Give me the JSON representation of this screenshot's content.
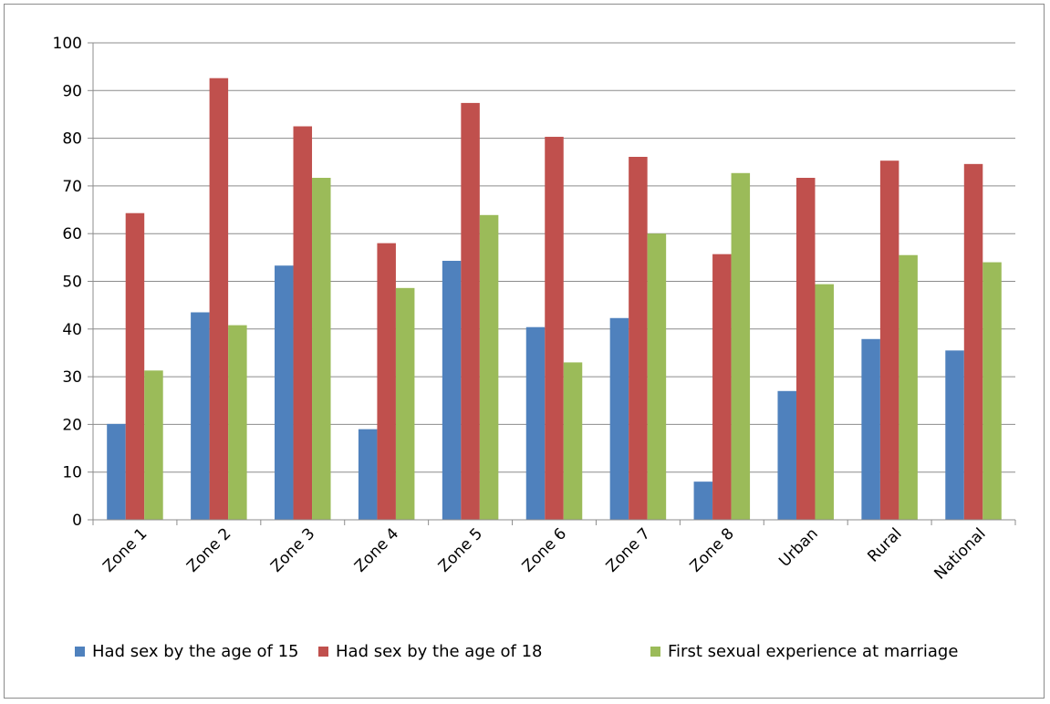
{
  "chart_data": {
    "type": "bar",
    "title": "",
    "xlabel": "",
    "ylabel": "",
    "categories": [
      "Zone 1",
      "Zone 2",
      "Zone 3",
      "Zone 4",
      "Zone 5",
      "Zone 6",
      "Zone 7",
      "Zone 8",
      "Urban",
      "Rural",
      "National"
    ],
    "series": [
      {
        "name": "Had sex by the age of 15",
        "color": "#4f81bd",
        "values": [
          20.1,
          43.5,
          53.3,
          19.0,
          54.3,
          40.4,
          42.3,
          8.0,
          27.0,
          37.9,
          35.5
        ]
      },
      {
        "name": "Had sex by the age of 18",
        "color": "#c0504d",
        "values": [
          64.3,
          92.6,
          82.5,
          58.0,
          87.4,
          80.3,
          76.1,
          55.7,
          71.7,
          75.3,
          74.6
        ]
      },
      {
        "name": "First sexual experience at marriage",
        "color": "#9bbb59",
        "values": [
          31.3,
          40.8,
          71.7,
          48.6,
          63.9,
          33.0,
          60.0,
          72.7,
          49.4,
          55.5,
          54.0
        ]
      }
    ],
    "ylim": [
      0,
      100
    ],
    "yticks": [
      "0",
      "10",
      "20",
      "30",
      "40",
      "50",
      "60",
      "70",
      "80",
      "90",
      "100"
    ],
    "grid": true,
    "legend_position": "bottom"
  }
}
